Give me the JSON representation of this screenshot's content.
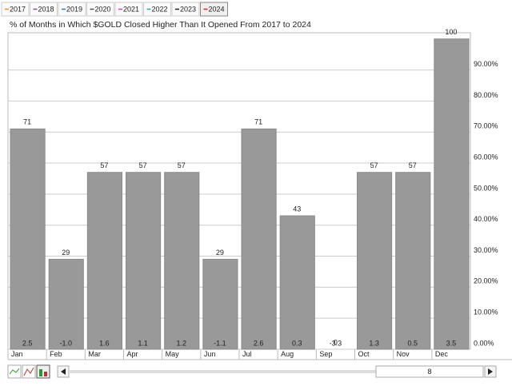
{
  "legend_items": [
    {
      "label": "2017",
      "color": "#f28c28"
    },
    {
      "label": "2018",
      "color": "#a040a0"
    },
    {
      "label": "2019",
      "color": "#2a7fb8"
    },
    {
      "label": "2020",
      "color": "#555555"
    },
    {
      "label": "2021",
      "color": "#cc44cc"
    },
    {
      "label": "2022",
      "color": "#2bb3a0"
    },
    {
      "label": "2023",
      "color": "#222222"
    },
    {
      "label": "2024",
      "color": "#e02020"
    }
  ],
  "chart_data": {
    "type": "bar",
    "title": "% of Months in Which $GOLD Closed Higher Than It Opened From 2017 to 2024",
    "categories": [
      "Jan",
      "Feb",
      "Mar",
      "Apr",
      "May",
      "Jun",
      "Jul",
      "Aug",
      "Sep",
      "Oct",
      "Nov",
      "Dec"
    ],
    "values": [
      71,
      29,
      57,
      57,
      57,
      29,
      71,
      43,
      0,
      57,
      57,
      100
    ],
    "average_change_labels": [
      "2.5",
      "-1.0",
      "1.6",
      "1.1",
      "1.2",
      "-1.1",
      "2.6",
      "0.3",
      "-3.3",
      "1.3",
      "0.5",
      "3.5"
    ],
    "color": "#999999",
    "ylim": [
      0,
      102
    ],
    "yticks": [
      {
        "value": 0,
        "label": "0.00%"
      },
      {
        "value": 10,
        "label": "10.00%"
      },
      {
        "value": 20,
        "label": "20.00%"
      },
      {
        "value": 30,
        "label": "30.00%"
      },
      {
        "value": 40,
        "label": "40.00%"
      },
      {
        "value": 50,
        "label": "50.00%"
      },
      {
        "value": 60,
        "label": "60.00%"
      },
      {
        "value": 70,
        "label": "70.00%"
      },
      {
        "value": 80,
        "label": "80.00%"
      },
      {
        "value": 90,
        "label": "90.00%"
      }
    ],
    "grid": true
  },
  "scrollbar": {
    "label": "8"
  }
}
